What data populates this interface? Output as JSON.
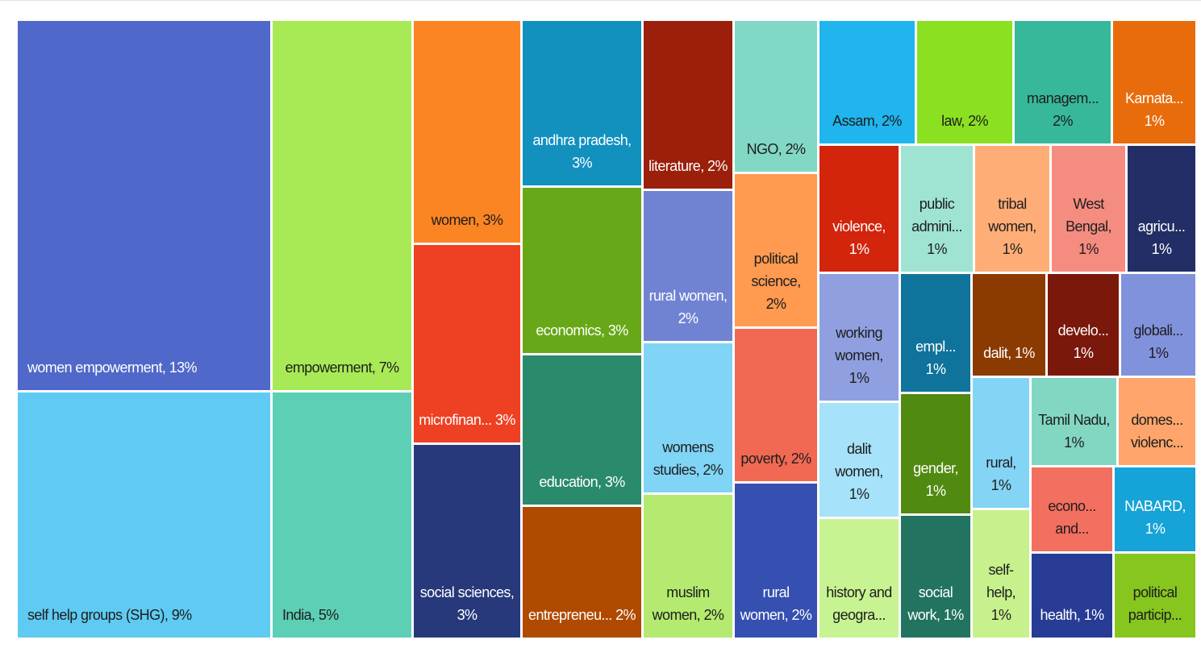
{
  "chart_data": {
    "type": "treemap",
    "categories": [
      "women empowerment,",
      "self help groups (SHG),",
      "empowerment,",
      "India,",
      "women,",
      "microfinan...",
      "social sciences,",
      "andhra pradesh,",
      "economics,",
      "education,",
      "entrepreneu...",
      "literature,",
      "rural women,",
      "womens studies,",
      "muslim women,",
      "NGO,",
      "political science,",
      "poverty,",
      "rural women,",
      "Assam,",
      "law,",
      "managem...",
      "Karnata...",
      "violence,",
      "public admini...",
      "tribal women,",
      "West Bengal,",
      "agricu...",
      "working women,",
      "empl...",
      "dalit,",
      "develo...",
      "globali...",
      "dalit women,",
      "history and geogra...",
      "gender,",
      "social work,",
      "rural,",
      "self-help,",
      "Tamil Nadu,",
      "domes... violenc...",
      "econo... and...",
      "NABARD,",
      "health,",
      "political particip..."
    ],
    "values": [
      13,
      9,
      7,
      5,
      3,
      3,
      3,
      3,
      3,
      3,
      2,
      2,
      2,
      2,
      2,
      2,
      2,
      2,
      2,
      2,
      2,
      2,
      1,
      1,
      1,
      1,
      1,
      1,
      1,
      1,
      1,
      1,
      1,
      1,
      1,
      1,
      1,
      1,
      1,
      1,
      1,
      1,
      1,
      1,
      1
    ],
    "value_labels": [
      "13%",
      "9%",
      "7%",
      "5%",
      "3%",
      "3%",
      "3%",
      "3%",
      "3%",
      "3%",
      "2%",
      "2%",
      "2%",
      "2%",
      "2%",
      "2%",
      "2%",
      "2%",
      "2%",
      "2%",
      "2%",
      "2%",
      "1%",
      "1%",
      "1%",
      "1%",
      "1%",
      "1%",
      "1%",
      "1%",
      "1%",
      "1%",
      "1%",
      "1%",
      null,
      "1%",
      "1%",
      "1%",
      "1%",
      "1%",
      null,
      null,
      "1%",
      "1%",
      null
    ],
    "colors": [
      "#5068c9",
      "#5fcbf3",
      "#a8ea55",
      "#5dcfb4",
      "#fb8423",
      "#ee4124",
      "#27397a",
      "#1291bf",
      "#68a818",
      "#2a8a6c",
      "#b04a00",
      "#9b1f0b",
      "#7083d3",
      "#80d4f5",
      "#b3ea6f",
      "#81d8c4",
      "#ff9a50",
      "#f16952",
      "#3550b0",
      "#20b5ee",
      "#8be021",
      "#38b89a",
      "#e96c0c",
      "#d2250c",
      "#9fe3d3",
      "#ffad77",
      "#f58c80",
      "#232e66",
      "#8f9fe0",
      "#10739b",
      "#8b3a02",
      "#7a190b",
      "#8192dd",
      "#a6e2fa",
      "#c8f393",
      "#518a10",
      "#22735f",
      "#84d4f5",
      "#c7f18c",
      "#82d7c3",
      "#ffa56b",
      "#f36f5f",
      "#16a3d8",
      "#283c95",
      "#86c61f"
    ]
  }
}
